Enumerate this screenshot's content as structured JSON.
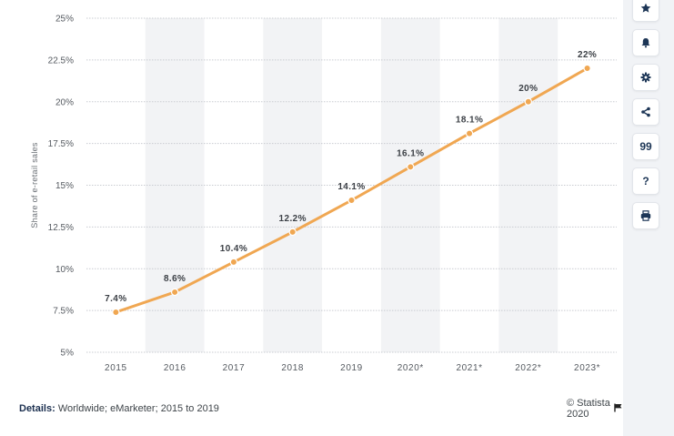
{
  "chart_data": {
    "type": "line",
    "title": "",
    "ylabel": "Share of e-retail sales",
    "xlabel": "",
    "categories": [
      "2015",
      "2016",
      "2017",
      "2018",
      "2019",
      "2020*",
      "2021*",
      "2022*",
      "2023*"
    ],
    "series": [
      {
        "values": [
          7.4,
          8.6,
          10.4,
          12.2,
          14.1,
          16.1,
          18.1,
          20,
          22
        ],
        "labels": [
          "7.4%",
          "8.6%",
          "10.4%",
          "12.2%",
          "14.1%",
          "16.1%",
          "18.1%",
          "20%",
          "22%"
        ],
        "color": "#f0a752"
      }
    ],
    "ylim": [
      5,
      25
    ],
    "yticks": [
      5,
      7.5,
      10,
      12.5,
      15,
      17.5,
      20,
      22.5,
      25
    ],
    "ytick_labels": [
      "5%",
      "7.5%",
      "10%",
      "12.5%",
      "15%",
      "17.5%",
      "20%",
      "22.5%",
      "25%"
    ],
    "grid": true,
    "legend": "none"
  },
  "footer": {
    "details_label": "Details:",
    "details_text": "Worldwide; eMarketer; 2015 to 2019",
    "credit": "© Statista 2020"
  },
  "toolbar": {
    "icons": [
      "star-icon",
      "bell-icon",
      "gear-icon",
      "share-icon",
      "quote-icon",
      "help-icon",
      "print-icon"
    ],
    "help_label": "?",
    "quote_label": "99"
  },
  "colors": {
    "line": "#f0a752",
    "band": "#f2f3f5",
    "grid": "#c9ccd1",
    "toolbar_icon": "#1d3656"
  }
}
